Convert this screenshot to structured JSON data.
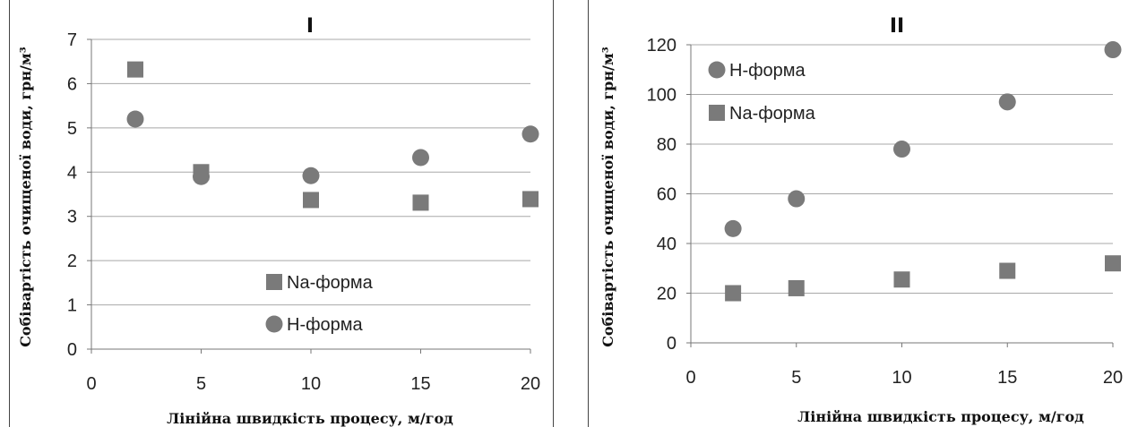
{
  "chart_data": [
    {
      "type": "scatter",
      "title": "I",
      "xlabel": "Лінійна швидкість процесу, м/год",
      "ylabel": "Собівартість очищеної води, грн/м³",
      "xlim": [
        0,
        20
      ],
      "ylim": [
        0,
        7
      ],
      "xticks": [
        "0",
        "5",
        "10",
        "15",
        "20"
      ],
      "yticks": [
        "0",
        "1",
        "2",
        "3",
        "4",
        "5",
        "6",
        "7"
      ],
      "grid": "horizontal",
      "legend_position": "bottom-center",
      "series": [
        {
          "name": "Na-форма",
          "marker": "square",
          "color": "#7a7a7a",
          "x": [
            2,
            5,
            10,
            15,
            20
          ],
          "y": [
            6.32,
            4.0,
            3.37,
            3.31,
            3.39
          ]
        },
        {
          "name": "H-форма",
          "marker": "circle",
          "color": "#7a7a7a",
          "x": [
            2,
            5,
            10,
            15,
            20
          ],
          "y": [
            5.2,
            3.9,
            3.92,
            4.33,
            4.86
          ]
        }
      ]
    },
    {
      "type": "scatter",
      "title": "II",
      "xlabel": "Лінійна швидкість процесу, м/год",
      "ylabel": "Собівартість очищеної води, грн/м³",
      "xlim": [
        0,
        20
      ],
      "ylim": [
        0,
        120
      ],
      "xticks": [
        "0",
        "5",
        "10",
        "15",
        "20"
      ],
      "yticks": [
        "0",
        "20",
        "40",
        "60",
        "80",
        "100",
        "120"
      ],
      "grid": "horizontal",
      "legend_position": "top-left",
      "series": [
        {
          "name": "H-форма",
          "marker": "circle",
          "color": "#7a7a7a",
          "x": [
            2,
            5,
            10,
            15,
            20
          ],
          "y": [
            46,
            58,
            78,
            97,
            118
          ]
        },
        {
          "name": "Na-форма",
          "marker": "square",
          "color": "#7a7a7a",
          "x": [
            2,
            5,
            10,
            15,
            20
          ],
          "y": [
            20,
            22,
            25.5,
            29,
            32
          ]
        }
      ]
    }
  ]
}
